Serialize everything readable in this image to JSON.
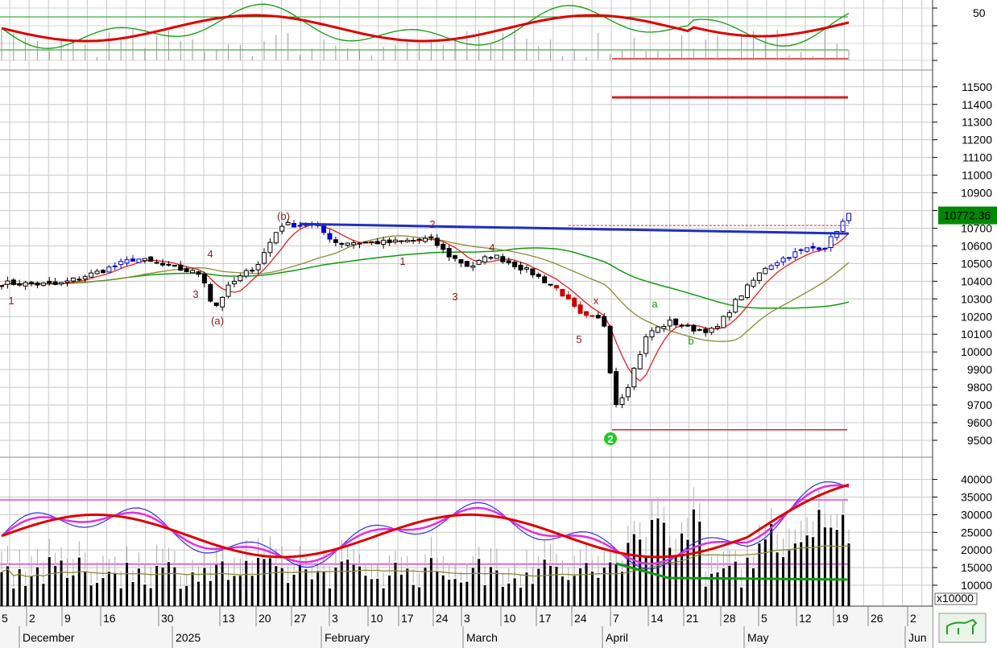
{
  "chart_data": {
    "type": "candlestick",
    "top_panel": {
      "ytick_labels": [
        "50"
      ],
      "series_colors": {
        "smooth": "#dd0000",
        "fast": "#119911",
        "band": "#119911",
        "bars": "#888888"
      }
    },
    "price_panel": {
      "yticks": [
        9500,
        9600,
        9700,
        9800,
        9900,
        10000,
        10100,
        10200,
        10300,
        10400,
        10500,
        10600,
        10700,
        10800,
        10900,
        11000,
        11100,
        11200,
        11300,
        11400,
        11500
      ],
      "last_price_label": "10772.36",
      "last_price": 10772.36,
      "resistance_level": 10715,
      "target_level": 11440,
      "support_level": 9560,
      "signal_marker": "2",
      "wave_labels": [
        {
          "text": "1",
          "color": "#8b1a1a"
        },
        {
          "text": "3",
          "color": "#8b1a1a"
        },
        {
          "text": "4",
          "color": "#8b1a1a"
        },
        {
          "text": "(a)",
          "color": "#8b1a1a"
        },
        {
          "text": "(b)",
          "color": "#8b1a1a"
        },
        {
          "text": "1",
          "color": "#8b1a1a"
        },
        {
          "text": "2",
          "color": "#8b1a1a"
        },
        {
          "text": "3",
          "color": "#8b1a1a"
        },
        {
          "text": "4",
          "color": "#8b1a1a"
        },
        {
          "text": "5",
          "color": "#8b1a1a"
        },
        {
          "text": "x",
          "color": "#8b1a1a"
        },
        {
          "text": "a",
          "color": "#119911"
        },
        {
          "text": "b",
          "color": "#119911"
        }
      ]
    },
    "volume_panel": {
      "yticks": [
        10000,
        15000,
        20000,
        25000,
        30000,
        35000,
        40000
      ],
      "unit_label": "x10000",
      "upper_band": 34200,
      "lower_band": 16000
    },
    "x_axis": {
      "day_labels": [
        "5",
        "2",
        "9",
        "16",
        "30",
        "13",
        "20",
        "27",
        "3",
        "10",
        "17",
        "24",
        "3",
        "10",
        "17",
        "24",
        "7",
        "14",
        "21",
        "28",
        "5",
        "12",
        "19",
        "26",
        "2"
      ],
      "month_labels": [
        "December",
        "2025",
        "February",
        "March",
        "April",
        "May",
        "Jun"
      ]
    }
  }
}
